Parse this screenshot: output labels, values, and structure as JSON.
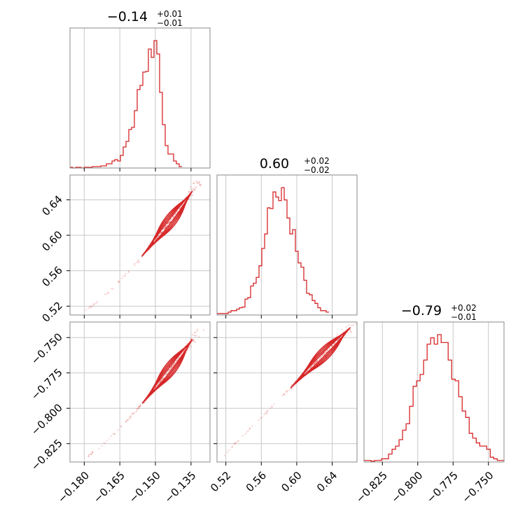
{
  "accent_color": "#d62728",
  "chart_data": [
    {
      "type": "histogram",
      "panel": "hist-param-1",
      "title": {
        "value": "−0.14",
        "plus": "+0.01",
        "minus": "−0.01"
      },
      "xlim": [
        -0.186,
        -0.127
      ],
      "bins_x_start": -0.186,
      "bin_width": 0.00118,
      "counts": [
        1,
        0,
        1,
        1,
        0,
        1,
        1,
        1,
        2,
        2,
        2,
        3,
        3,
        6,
        6,
        10,
        12,
        10,
        18,
        30,
        38,
        55,
        58,
        82,
        112,
        118,
        137,
        138,
        170,
        158,
        182,
        163,
        108,
        62,
        32,
        20,
        20,
        10,
        6,
        2
      ],
      "grid": true
    },
    {
      "type": "histogram",
      "panel": "hist-param-2",
      "title": {
        "value": "0.60",
        "plus": "+0.02",
        "minus": "−0.02"
      },
      "xlim": [
        0.51,
        0.668
      ],
      "bins_x_start": 0.51,
      "bin_width": 0.00316,
      "counts": [
        2,
        2,
        2,
        2,
        4,
        6,
        6,
        8,
        10,
        11,
        22,
        24,
        40,
        44,
        52,
        68,
        92,
        112,
        148,
        147,
        170,
        163,
        158,
        176,
        159,
        134,
        112,
        118,
        88,
        72,
        66,
        48,
        30,
        28,
        20,
        16,
        10,
        6,
        6,
        4
      ],
      "grid": true
    },
    {
      "type": "histogram",
      "panel": "hist-param-3",
      "title": {
        "value": "−0.79",
        "plus": "+0.02",
        "minus": "−0.01"
      },
      "xlim": [
        -0.838,
        -0.739
      ],
      "bins_x_start": -0.838,
      "bin_width": 0.00248,
      "counts": [
        2,
        2,
        1,
        2,
        2,
        4,
        4,
        10,
        16,
        20,
        28,
        40,
        48,
        70,
        95,
        102,
        110,
        128,
        148,
        156,
        148,
        160,
        150,
        150,
        128,
        104,
        102,
        82,
        64,
        56,
        36,
        30,
        24,
        20,
        20,
        16,
        6,
        4,
        2,
        2
      ],
      "grid": true
    },
    {
      "type": "scatter",
      "panel": "scatter-2-vs-1",
      "xlim": [
        -0.186,
        -0.127
      ],
      "ylim": [
        0.51,
        0.668
      ],
      "relation": {
        "x0": -0.18,
        "x1": -0.133,
        "y0": 0.515,
        "y1": 0.655,
        "curve": 1.25
      },
      "contours": true,
      "grid": true
    },
    {
      "type": "scatter",
      "panel": "scatter-3-vs-1",
      "xlim": [
        -0.186,
        -0.127
      ],
      "ylim": [
        -0.838,
        -0.739
      ],
      "relation": {
        "x0": -0.18,
        "x1": -0.133,
        "y0": -0.835,
        "y1": -0.748,
        "curve": 1.25
      },
      "contours": true,
      "grid": true
    },
    {
      "type": "scatter",
      "panel": "scatter-3-vs-2",
      "xlim": [
        0.51,
        0.668
      ],
      "ylim": [
        -0.838,
        -0.739
      ],
      "relation": {
        "x0": 0.515,
        "x1": 0.665,
        "y0": -0.835,
        "y1": -0.74,
        "curve": 1.0
      },
      "contours": true,
      "grid": true
    }
  ],
  "axes": {
    "param1_ticks": [
      -0.18,
      -0.165,
      -0.15,
      -0.135
    ],
    "param1_labels": [
      "−0.180",
      "−0.165",
      "−0.150",
      "−0.135"
    ],
    "param2_ticks": [
      0.52,
      0.56,
      0.6,
      0.64
    ],
    "param2_labels": [
      "0.52",
      "0.56",
      "0.60",
      "0.64"
    ],
    "param3_ticks": [
      -0.825,
      -0.8,
      -0.775,
      -0.75
    ],
    "param3_labels": [
      "−0.825",
      "−0.800",
      "−0.775",
      "−0.750"
    ]
  }
}
